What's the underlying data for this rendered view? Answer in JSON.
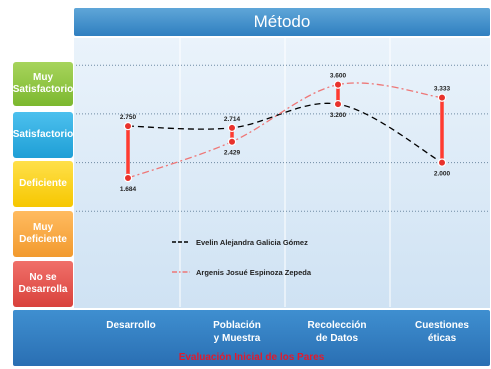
{
  "chart_data": {
    "type": "line",
    "title": "Método",
    "xlabel": "Evaluación Inicial de los Pares",
    "categories": [
      "Desarrollo",
      "Población y Muestra",
      "Recolección de Datos",
      "Cuestiones éticas"
    ],
    "category_lines": [
      [
        "Desarrollo"
      ],
      [
        "Población",
        "y Muestra"
      ],
      [
        "Recolección",
        "de Datos"
      ],
      [
        "Cuestiones",
        "éticas"
      ]
    ],
    "y_levels": [
      "Muy Satisfactorio",
      "Satisfactorio",
      "Deficiente",
      "Muy Deficiente",
      "No se Desarrolla"
    ],
    "ylim": [
      0,
      5
    ],
    "series": [
      {
        "name": "Evelin Alejandra Galicia Gómez",
        "values": [
          2.75,
          2.714,
          3.2,
          2.0
        ],
        "labels": [
          "2.750",
          "2.714",
          "3.200",
          "2.000"
        ],
        "color": "#000000",
        "dash": "6,4"
      },
      {
        "name": "Argenis Josué Espinoza Zepeda",
        "values": [
          1.684,
          2.429,
          3.6,
          3.333
        ],
        "labels": [
          "1.684",
          "2.429",
          "3.600",
          "3.333"
        ],
        "color": "#ee7777",
        "dash": "7,3,2,3"
      }
    ],
    "grid": true,
    "colors": {
      "muy_satisfactorio": "#8cc63f",
      "satisfactorio": "#29abe2",
      "deficiente": "#fcd116",
      "muy_deficiente": "#f7a440",
      "no_se_desarrolla": "#e8554e",
      "range_bar": "#ff3b30",
      "marker": "#e8322c"
    }
  }
}
